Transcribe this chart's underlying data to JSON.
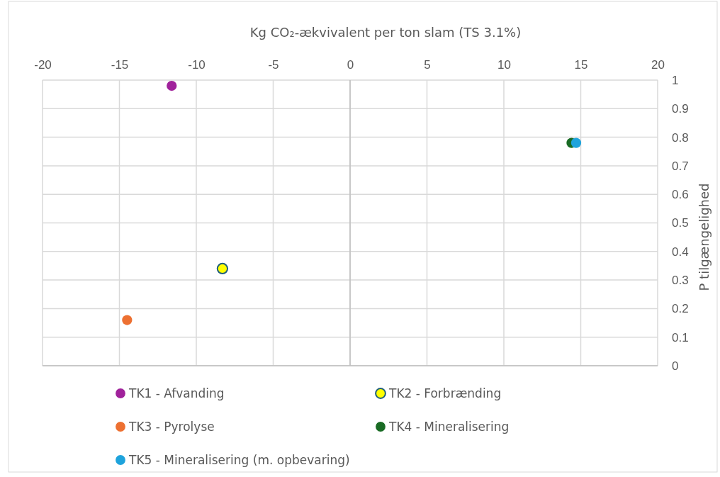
{
  "chart_data": {
    "type": "scatter",
    "xlabel": "Kg CO₂-ækvivalent per ton slam (TS 3.1%)",
    "ylabel": "P tilgængelighed",
    "xlim": [
      -20,
      20
    ],
    "xticks": [
      -20,
      -15,
      -10,
      -5,
      0,
      5,
      10,
      15,
      20
    ],
    "ylim": [
      0,
      1
    ],
    "yticks": [
      0,
      0.1,
      0.2,
      0.3,
      0.4,
      0.5,
      0.6,
      0.7,
      0.8,
      0.9,
      1
    ],
    "grid": true,
    "legend": "bottom",
    "marker": "circle",
    "series": [
      {
        "name": "TK1 - Afvanding",
        "color": "#a0229b",
        "x": [
          -11.6
        ],
        "values": [
          0.98
        ]
      },
      {
        "name": "TK2 - Forbrænding",
        "color": "#ffff00",
        "x": [
          -8.3
        ],
        "values": [
          0.34
        ]
      },
      {
        "name": "TK3 - Pyrolyse",
        "color": "#ed7031",
        "x": [
          -14.5
        ],
        "values": [
          0.16
        ]
      },
      {
        "name": "TK4 - Mineralisering",
        "color": "#196b24",
        "x": [
          14.4
        ],
        "values": [
          0.78
        ]
      },
      {
        "name": "TK5 - Mineralisering (m. opbevaring)",
        "color": "#1ea3dc",
        "x": [
          14.7
        ],
        "values": [
          0.78
        ]
      }
    ]
  }
}
